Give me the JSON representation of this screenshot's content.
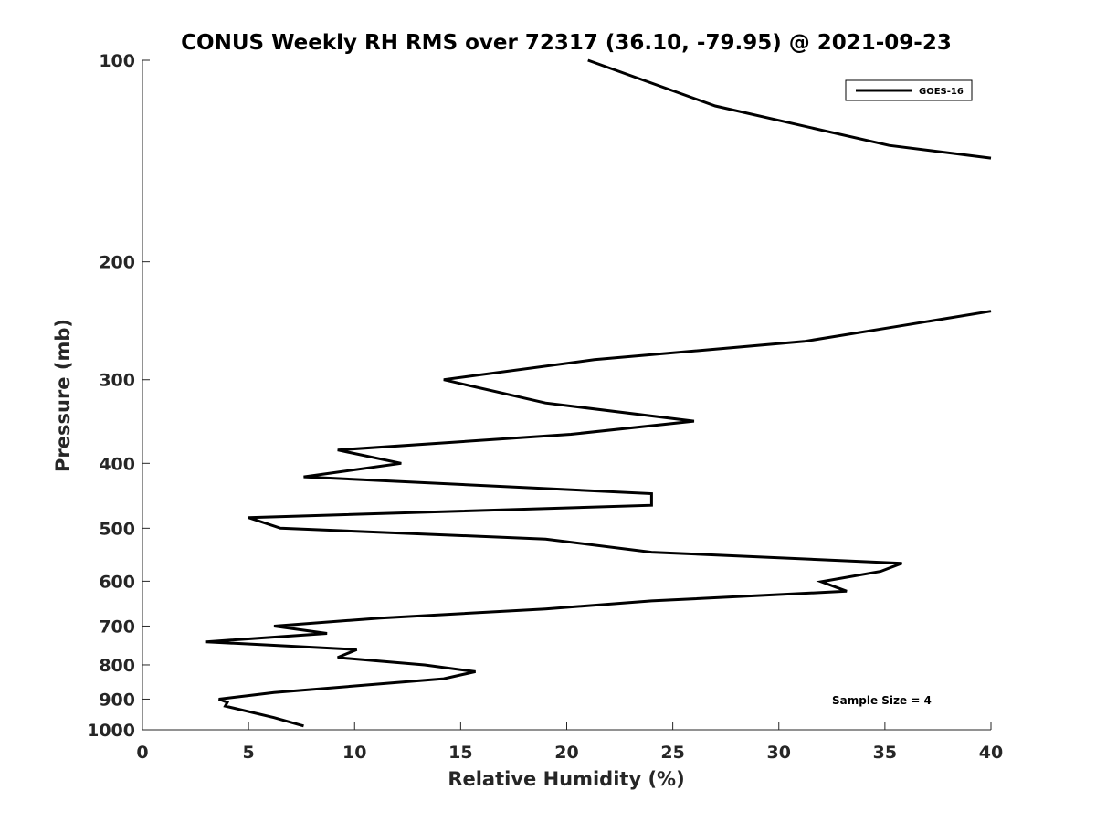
{
  "chart_data": {
    "type": "line",
    "title": "CONUS Weekly RH RMS over 72317 (36.10, -79.95) @ 2021-09-23",
    "xlabel": "Relative Humidity (%)",
    "ylabel": "Pressure (mb)",
    "xlim": [
      0,
      40
    ],
    "ylim": [
      1000,
      100
    ],
    "y_scale": "log",
    "y_reversed": true,
    "grid": false,
    "legend_position": "top-right",
    "xticks": [
      0,
      5,
      10,
      15,
      20,
      25,
      30,
      35,
      40
    ],
    "yticks": [
      100,
      200,
      300,
      400,
      500,
      600,
      700,
      800,
      900,
      1000
    ],
    "series": [
      {
        "name": "GOES-16",
        "color": "#000000",
        "segments": [
          [
            {
              "x": 21.0,
              "y": 100
            },
            {
              "x": 27.0,
              "y": 117
            },
            {
              "x": 35.2,
              "y": 134
            },
            {
              "x": 40.0,
              "y": 140
            }
          ],
          [
            {
              "x": 40.0,
              "y": 237
            },
            {
              "x": 35.5,
              "y": 250
            },
            {
              "x": 31.2,
              "y": 263
            },
            {
              "x": 21.3,
              "y": 280
            },
            {
              "x": 14.2,
              "y": 300
            },
            {
              "x": 19.0,
              "y": 325
            },
            {
              "x": 26.0,
              "y": 346
            },
            {
              "x": 20.2,
              "y": 362
            },
            {
              "x": 9.2,
              "y": 382
            },
            {
              "x": 12.2,
              "y": 400
            },
            {
              "x": 7.6,
              "y": 419
            },
            {
              "x": 24.0,
              "y": 444
            },
            {
              "x": 24.0,
              "y": 462
            },
            {
              "x": 5.0,
              "y": 482
            },
            {
              "x": 6.5,
              "y": 500
            },
            {
              "x": 19.0,
              "y": 519
            },
            {
              "x": 24.0,
              "y": 543
            },
            {
              "x": 35.8,
              "y": 564
            },
            {
              "x": 34.8,
              "y": 580
            },
            {
              "x": 32.0,
              "y": 601
            },
            {
              "x": 33.2,
              "y": 621
            },
            {
              "x": 24.0,
              "y": 642
            },
            {
              "x": 19.0,
              "y": 660
            },
            {
              "x": 11.2,
              "y": 681
            },
            {
              "x": 6.2,
              "y": 700
            },
            {
              "x": 8.7,
              "y": 718
            },
            {
              "x": 3.0,
              "y": 739
            },
            {
              "x": 10.1,
              "y": 759
            },
            {
              "x": 9.2,
              "y": 780
            },
            {
              "x": 13.3,
              "y": 800
            },
            {
              "x": 15.7,
              "y": 819
            },
            {
              "x": 14.2,
              "y": 839
            },
            {
              "x": 6.2,
              "y": 880
            },
            {
              "x": 3.6,
              "y": 900
            },
            {
              "x": 4.0,
              "y": 910
            },
            {
              "x": 3.9,
              "y": 922
            },
            {
              "x": 6.2,
              "y": 959
            },
            {
              "x": 7.6,
              "y": 987
            }
          ]
        ]
      }
    ],
    "annotation": "Sample Size = 4"
  }
}
